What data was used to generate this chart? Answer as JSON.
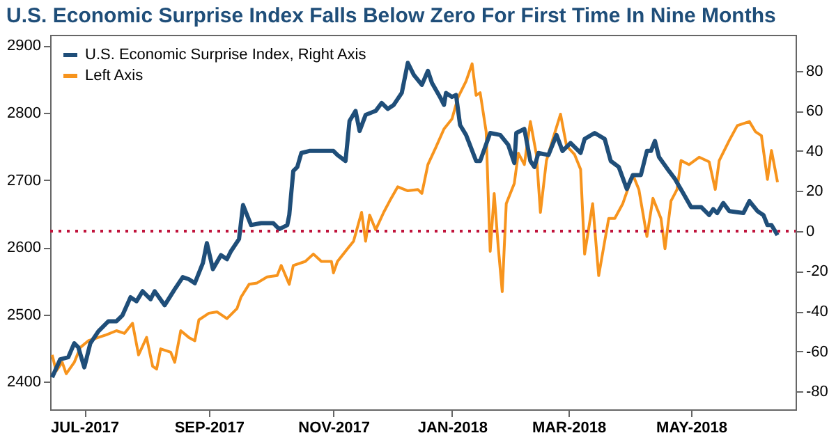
{
  "chart_data": {
    "type": "line",
    "title": "U.S. Economic Surprise Index Falls Below Zero For First Time In Nine Months",
    "series": [
      {
        "name": "U.S. Economic Surprise Index, Right Axis",
        "color": "#1f4e79",
        "axis": "y2",
        "x": [
          "2017-07-01",
          "2017-07-05",
          "2017-07-09",
          "2017-07-12",
          "2017-07-14",
          "2017-07-17",
          "2017-07-20",
          "2017-07-24",
          "2017-07-29",
          "2017-08-02",
          "2017-08-05",
          "2017-08-09",
          "2017-08-12",
          "2017-08-15",
          "2017-08-19",
          "2017-08-21",
          "2017-08-26",
          "2017-08-31",
          "2017-09-04",
          "2017-09-07",
          "2017-09-10",
          "2017-09-14",
          "2017-09-16",
          "2017-09-19",
          "2017-09-23",
          "2017-09-26",
          "2017-09-28",
          "2017-10-02",
          "2017-10-04",
          "2017-10-08",
          "2017-10-13",
          "2017-10-19",
          "2017-10-22",
          "2017-10-26",
          "2017-10-27",
          "2017-10-29",
          "2017-10-31",
          "2017-11-02",
          "2017-11-06",
          "2017-11-13",
          "2017-11-18",
          "2017-11-20",
          "2017-11-24",
          "2017-11-26",
          "2017-11-29",
          "2017-12-01",
          "2017-12-04",
          "2017-12-09",
          "2017-12-12",
          "2017-12-15",
          "2017-12-18",
          "2017-12-22",
          "2017-12-25",
          "2017-12-28",
          "2018-01-01",
          "2018-01-04",
          "2018-01-06",
          "2018-01-10",
          "2018-01-12",
          "2018-01-13",
          "2018-01-16",
          "2018-01-18",
          "2018-01-20",
          "2018-01-23",
          "2018-01-28",
          "2018-01-30",
          "2018-02-04",
          "2018-02-09",
          "2018-02-13",
          "2018-02-16",
          "2018-02-17",
          "2018-02-21",
          "2018-02-24",
          "2018-02-26",
          "2018-02-28",
          "2018-03-05",
          "2018-03-09",
          "2018-03-12",
          "2018-03-16",
          "2018-03-21",
          "2018-03-23",
          "2018-03-28",
          "2018-04-02",
          "2018-04-05",
          "2018-04-09",
          "2018-04-13",
          "2018-04-16",
          "2018-04-20",
          "2018-04-23",
          "2018-04-25",
          "2018-04-27",
          "2018-04-29",
          "2018-05-04",
          "2018-05-07",
          "2018-05-11",
          "2018-05-15",
          "2018-05-20",
          "2018-05-24",
          "2018-05-26",
          "2018-05-28",
          "2018-05-31",
          "2018-06-03",
          "2018-06-10",
          "2018-06-13",
          "2018-06-17",
          "2018-06-20",
          "2018-06-22",
          "2018-06-24",
          "2018-06-27"
        ],
        "values": [
          -73,
          -64,
          -63,
          -56,
          -58,
          -68,
          -56,
          -50,
          -45,
          -45,
          -42,
          -33,
          -35,
          -30,
          -34,
          -30,
          -37,
          -29,
          -23,
          -24,
          -26,
          -16,
          -6,
          -19,
          -12,
          -14,
          -10,
          -4,
          13,
          3,
          4,
          4,
          1,
          3,
          8,
          30,
          32,
          39,
          40,
          40,
          40,
          38,
          35,
          55,
          60,
          50,
          58,
          60,
          64,
          61,
          63,
          69,
          84,
          78,
          73,
          80,
          74,
          67,
          63,
          69,
          67,
          68,
          53,
          48,
          35,
          35,
          49,
          48,
          43,
          34,
          49,
          51,
          35,
          32,
          39,
          38,
          48,
          40,
          44,
          39,
          46,
          49,
          46,
          35,
          32,
          21,
          28,
          28,
          40,
          40,
          45,
          37,
          30,
          26,
          19,
          12,
          12,
          8,
          11,
          9,
          14,
          10,
          9,
          15,
          10,
          8,
          3,
          3,
          -2
        ]
      },
      {
        "name": "Left Axis",
        "color": "#f7941d",
        "x": [
          "2017-07-01",
          "2017-07-03",
          "2017-07-06",
          "2017-07-08",
          "2017-07-12",
          "2017-07-15",
          "2017-07-19",
          "2017-07-24",
          "2017-07-28",
          "2017-08-02",
          "2017-08-06",
          "2017-08-10",
          "2017-08-13",
          "2017-08-17",
          "2017-08-20",
          "2017-08-22",
          "2017-08-24",
          "2017-08-29",
          "2017-08-31",
          "2017-09-03",
          "2017-09-07",
          "2017-09-10",
          "2017-09-12",
          "2017-09-17",
          "2017-09-21",
          "2017-09-26",
          "2017-10-01",
          "2017-10-03",
          "2017-10-07",
          "2017-10-11",
          "2017-10-16",
          "2017-10-21",
          "2017-10-23",
          "2017-10-27",
          "2017-10-29",
          "2017-11-04",
          "2017-11-08",
          "2017-11-12",
          "2017-11-17",
          "2017-11-18",
          "2017-11-20",
          "2017-11-25",
          "2017-11-28",
          "2017-12-02",
          "2017-12-04",
          "2017-12-06",
          "2017-12-09",
          "2017-12-13",
          "2017-12-16",
          "2017-12-20",
          "2017-12-25",
          "2017-12-30",
          "2018-01-01",
          "2018-01-04",
          "2018-01-08",
          "2018-01-12",
          "2018-01-16",
          "2018-01-19",
          "2018-01-23",
          "2018-01-26",
          "2018-01-28",
          "2018-01-30",
          "2018-02-02",
          "2018-02-03",
          "2018-02-04",
          "2018-02-06",
          "2018-02-08",
          "2018-02-10",
          "2018-02-12",
          "2018-02-16",
          "2018-02-18",
          "2018-02-21",
          "2018-02-24",
          "2018-02-27",
          "2018-03-01",
          "2018-03-04",
          "2018-03-07",
          "2018-03-11",
          "2018-03-14",
          "2018-03-18",
          "2018-03-21",
          "2018-03-23",
          "2018-03-27",
          "2018-03-30",
          "2018-04-02",
          "2018-04-04",
          "2018-04-07",
          "2018-04-11",
          "2018-04-16",
          "2018-04-19",
          "2018-04-23",
          "2018-04-26",
          "2018-04-30",
          "2018-05-02",
          "2018-05-05",
          "2018-05-08",
          "2018-05-10",
          "2018-05-14",
          "2018-05-19",
          "2018-05-24",
          "2018-05-27",
          "2018-05-29",
          "2018-06-03",
          "2018-06-07",
          "2018-06-13",
          "2018-06-16",
          "2018-06-19",
          "2018-06-22",
          "2018-06-24",
          "2018-06-27"
        ],
        "values": [
          2440,
          2416,
          2429,
          2412,
          2429,
          2451,
          2461,
          2466,
          2470,
          2476,
          2472,
          2487,
          2440,
          2466,
          2423,
          2419,
          2449,
          2444,
          2429,
          2476,
          2466,
          2461,
          2492,
          2502,
          2504,
          2494,
          2509,
          2526,
          2545,
          2547,
          2556,
          2558,
          2573,
          2545,
          2573,
          2579,
          2590,
          2579,
          2579,
          2562,
          2579,
          2598,
          2609,
          2652,
          2609,
          2648,
          2626,
          2652,
          2669,
          2690,
          2684,
          2686,
          2680,
          2723,
          2749,
          2776,
          2791,
          2823,
          2847,
          2873,
          2826,
          2830,
          2772,
          2680,
          2594,
          2680,
          2601,
          2534,
          2665,
          2695,
          2740,
          2723,
          2787,
          2738,
          2652,
          2729,
          2759,
          2798,
          2751,
          2738,
          2716,
          2590,
          2665,
          2558,
          2609,
          2643,
          2643,
          2665,
          2708,
          2686,
          2616,
          2673,
          2643,
          2598,
          2669,
          2686,
          2729,
          2723,
          2734,
          2727,
          2686,
          2729,
          2759,
          2781,
          2787,
          2772,
          2766,
          2701,
          2744,
          2697
        ]
      }
    ],
    "xlim": [
      "2017-06-30",
      "2018-07-06"
    ],
    "xticks": [
      {
        "value": "2017-07-17",
        "label": "JUL-2017"
      },
      {
        "value": "2017-09-17",
        "label": "SEP-2017"
      },
      {
        "value": "2017-11-18",
        "label": "NOV-2017"
      },
      {
        "value": "2018-01-16",
        "label": "JAN-2018"
      },
      {
        "value": "2018-03-15",
        "label": "MAR-2018"
      },
      {
        "value": "2018-05-15",
        "label": "MAY-2018"
      }
    ],
    "ylim": [
      2359,
      2916
    ],
    "yticks": [
      2400,
      2500,
      2600,
      2700,
      2800,
      2900
    ],
    "y2lim": [
      -89,
      98
    ],
    "y2ticks": [
      -80,
      -60,
      -40,
      -20,
      0,
      20,
      40,
      60,
      80
    ],
    "ref_lines": [
      {
        "axis": "y2",
        "value": 0,
        "color": "#c0143c",
        "line_style": "dotted"
      }
    ],
    "legend": "top left",
    "grid": false,
    "marker": "none",
    "line_style": "solid"
  }
}
